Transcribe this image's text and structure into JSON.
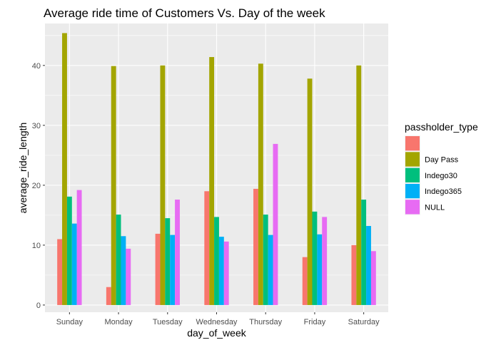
{
  "chart_data": {
    "type": "bar",
    "title": "Average ride time of Customers Vs. Day of the week",
    "xlabel": "day_of_week",
    "ylabel": "average_ride_length",
    "ylim": [
      -1.2,
      47
    ],
    "yticks": [
      0,
      10,
      20,
      30,
      40
    ],
    "grid": true,
    "legend": {
      "title": "passholder_type",
      "placement": "right"
    },
    "categories": [
      "Sunday",
      "Monday",
      "Tuesday",
      "Wednesday",
      "Thursday",
      "Friday",
      "Saturday"
    ],
    "series": [
      {
        "name": "",
        "color": "#F8766D",
        "values": [
          11.0,
          3.0,
          11.9,
          19.0,
          19.4,
          8.0,
          10.0
        ]
      },
      {
        "name": "Day Pass",
        "color": "#A3A500",
        "values": [
          45.4,
          39.9,
          40.0,
          41.4,
          40.3,
          37.8,
          40.0
        ]
      },
      {
        "name": "Indego30",
        "color": "#00BF7D",
        "values": [
          18.1,
          15.1,
          14.5,
          14.7,
          15.1,
          15.6,
          17.6
        ]
      },
      {
        "name": "Indego365",
        "color": "#00B0F6",
        "values": [
          13.6,
          11.5,
          11.7,
          11.4,
          11.7,
          11.8,
          13.2
        ]
      },
      {
        "name": "NULL",
        "color": "#E76BF3",
        "values": [
          19.2,
          9.4,
          17.6,
          10.6,
          26.9,
          14.7,
          9.0
        ]
      }
    ]
  }
}
